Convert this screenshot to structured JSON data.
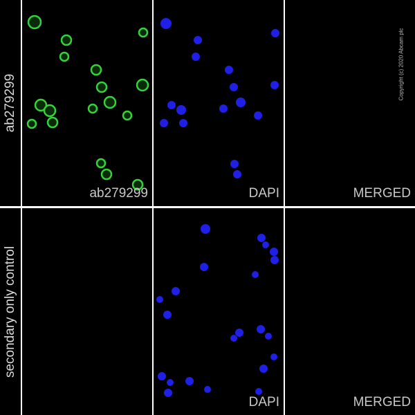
{
  "rows": [
    {
      "label": "ab279299",
      "panels": [
        {
          "label": "ab279299",
          "channel": "green"
        },
        {
          "label": "DAPI",
          "channel": "blue"
        },
        {
          "label": "MERGED",
          "channel": "merged"
        }
      ]
    },
    {
      "label": "secondary only control",
      "panels": [
        {
          "label": "",
          "channel": "empty"
        },
        {
          "label": "DAPI",
          "channel": "blue"
        },
        {
          "label": "MERGED",
          "channel": "merged"
        }
      ]
    }
  ],
  "copyright": "Copyright (c) 2020 Abcam plc",
  "colors": {
    "green": "#34d33a",
    "blue": "#1f1fe6",
    "cyan": "#27c8c8",
    "background": "#000000",
    "divider": "#ffffff"
  }
}
